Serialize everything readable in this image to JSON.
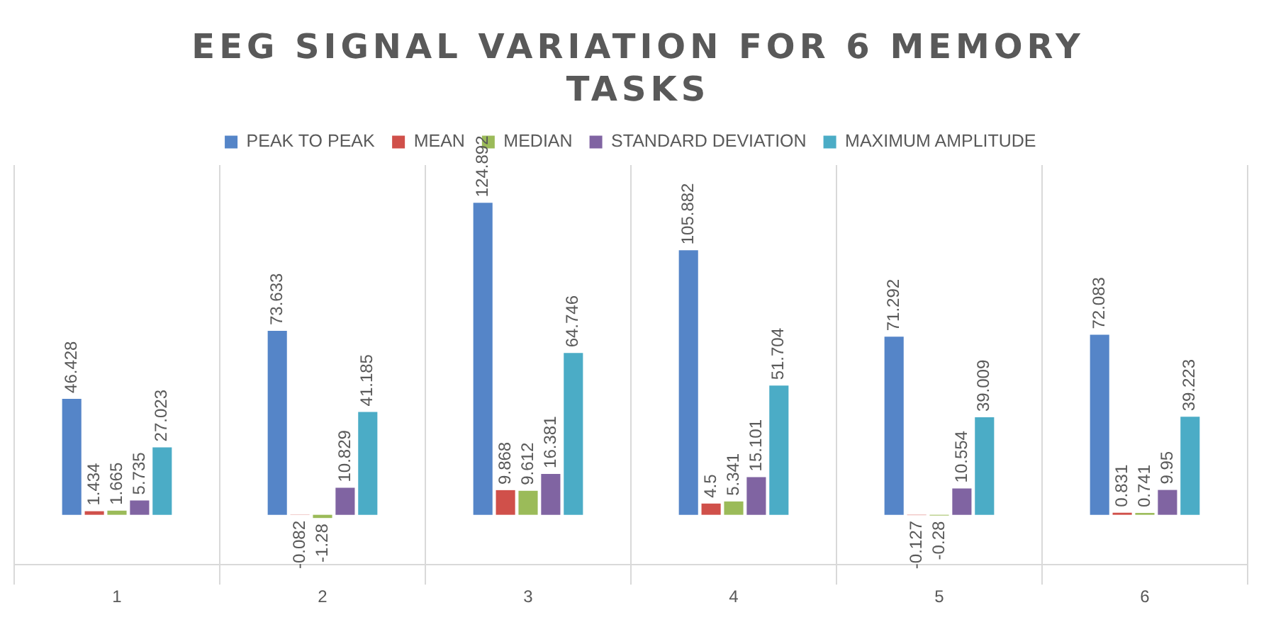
{
  "chart_data": {
    "type": "bar",
    "title": "EEG SIGNAL VARIATION  FOR 6 MEMORY TASKS",
    "categories": [
      "1",
      "2",
      "3",
      "4",
      "5",
      "6"
    ],
    "series": [
      {
        "name": "PEAK TO PEAK",
        "color": "#5585c8",
        "values": [
          46.428,
          73.633,
          124.892,
          105.882,
          71.292,
          72.083
        ]
      },
      {
        "name": "MEAN",
        "color": "#d0504a",
        "values": [
          1.434,
          -0.082,
          9.868,
          4.5,
          -0.127,
          0.831
        ]
      },
      {
        "name": "MEDIAN",
        "color": "#9bbb59",
        "values": [
          1.665,
          -1.28,
          9.612,
          5.341,
          -0.28,
          0.741
        ]
      },
      {
        "name": "STANDARD DEVIATION",
        "color": "#8064a2",
        "values": [
          5.735,
          10.829,
          16.381,
          15.101,
          10.554,
          9.95
        ]
      },
      {
        "name": "MAXIMUM AMPLITUDE",
        "color": "#4bacc6",
        "values": [
          27.023,
          41.185,
          64.746,
          51.704,
          39.009,
          39.223
        ]
      }
    ],
    "data_labels": true,
    "grid": "x",
    "legend": "top",
    "tick_labels": "x"
  }
}
